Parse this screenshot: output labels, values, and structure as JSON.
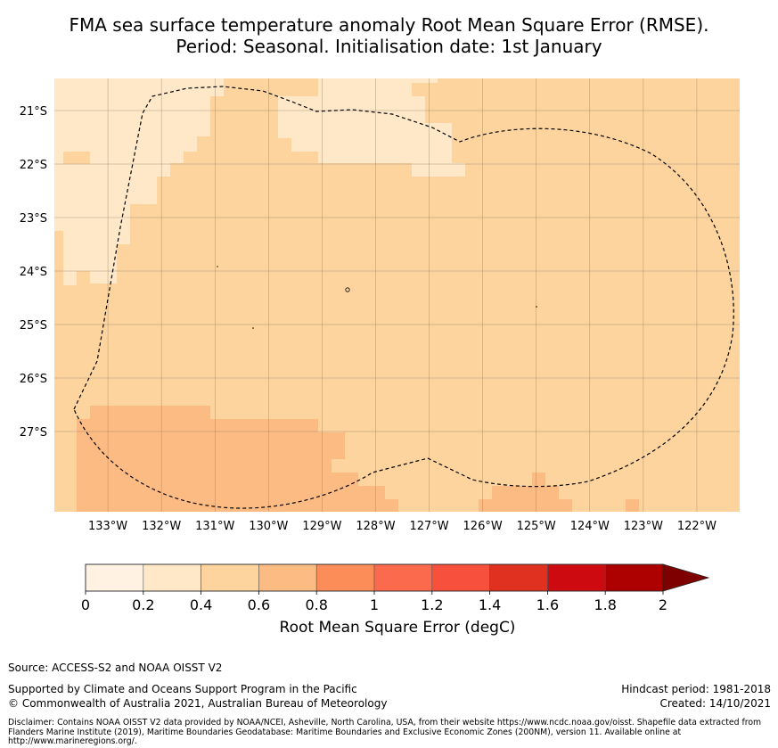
{
  "title": {
    "line1": "FMA sea surface temperature anomaly Root Mean Square Error (RMSE).",
    "line2": "Period: Seasonal. Initialisation date: 1st January"
  },
  "map": {
    "lon_range": [
      -134.0,
      -121.2
    ],
    "lat_range": [
      -28.5,
      -20.4
    ],
    "lon_ticks": [
      "133°W",
      "132°W",
      "131°W",
      "130°W",
      "129°W",
      "128°W",
      "127°W",
      "126°W",
      "125°W",
      "124°W",
      "123°W",
      "122°W"
    ],
    "lat_ticks": [
      "21°S",
      "22°S",
      "23°S",
      "24°S",
      "25°S",
      "26°S",
      "27°S"
    ],
    "lon_tick_values": [
      -133,
      -132,
      -131,
      -130,
      -129,
      -128,
      -127,
      -126,
      -125,
      -124,
      -123,
      -122
    ],
    "lat_tick_values": [
      -21,
      -22,
      -23,
      -24,
      -25,
      -26,
      -27
    ],
    "colors": {
      "background": "#fdd49e",
      "band_0_2_0_4": "#fee8c8",
      "band_0_6_0_8": "#fdbb84",
      "eez_line": "#000000"
    }
  },
  "colorbar": {
    "colors": [
      "#fff2e2",
      "#fee8c8",
      "#fdd49e",
      "#fdbb84",
      "#fc8d59",
      "#fc6a4e",
      "#f7503c",
      "#e0301f",
      "#cc0a10",
      "#ad0000"
    ],
    "extend_color": "#7f0000",
    "ticks": [
      "0",
      "0.2",
      "0.4",
      "0.6",
      "0.8",
      "1",
      "1.2",
      "1.4",
      "1.6",
      "1.8",
      "2"
    ],
    "label": "Root Mean Square Error (degC)"
  },
  "footer": {
    "source": "Source: ACCESS-S2 and NOAA OISST V2",
    "support_line1": "Supported by Climate and Oceans Support Program in the Pacific",
    "support_line2": "© Commonwealth of Australia 2021, Australian Bureau of Meteorology",
    "hindcast": "Hindcast period: 1981-2018",
    "created": "Created: 14/10/2021",
    "disclaimer": "Disclaimer: Contains NOAA OISST V2 data provided by NOAA/NCEI, Asheville, North Carolina, USA, from their website https://www.ncdc.noaa.gov/oisst. Shapefile data extracted from Flanders Marine Institute (2019), Maritime Boundaries Geodatabase: Maritime Boundaries and Exclusive Economic Zones (200NM), version 11. Available online at http://www.marineregions.org/."
  }
}
